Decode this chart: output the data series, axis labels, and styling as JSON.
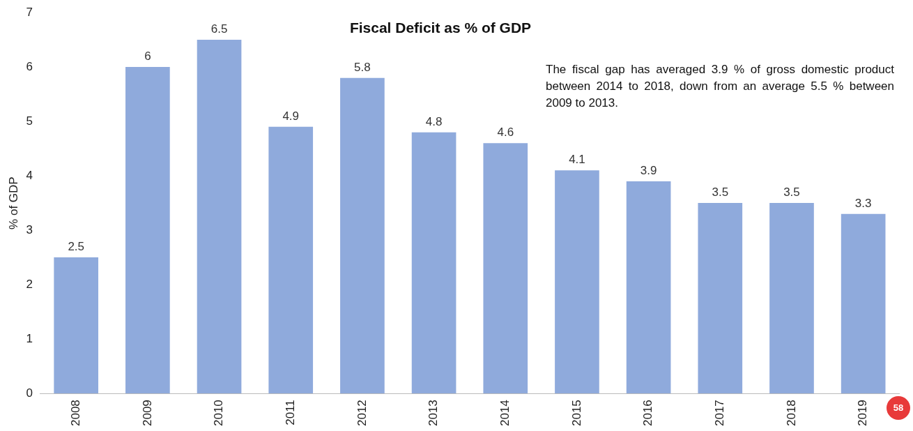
{
  "chart_data": {
    "type": "bar",
    "title": "Fiscal Deficit as % of GDP",
    "ylabel": "% of GDP",
    "categories": [
      "2008",
      "2009",
      "2010",
      "2011",
      "2012",
      "2013",
      "2014",
      "2015",
      "2016",
      "2017",
      "2018",
      "2019"
    ],
    "values": [
      2.5,
      6,
      6.5,
      4.9,
      5.8,
      4.8,
      4.6,
      4.1,
      3.9,
      3.5,
      3.5,
      3.3
    ],
    "color": "#8faadc",
    "ylim": [
      0,
      7
    ],
    "yticks": [
      0,
      1,
      2,
      3,
      4,
      5,
      6,
      7
    ],
    "grid": false,
    "legend": false,
    "data_labels": true,
    "annotations": [
      "The fiscal gap has averaged 3.9 % of gross domestic product between 2014 to 2018, down from an average 5.5 % between 2009 to 2013.",
      "58"
    ]
  }
}
